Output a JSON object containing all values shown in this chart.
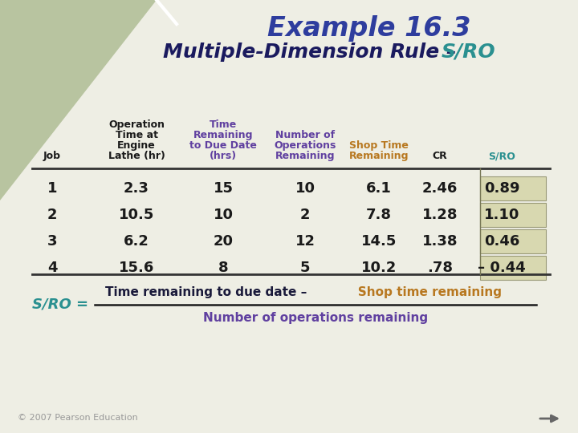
{
  "title1": "Example 16.3",
  "title2_black": "Multiple-Dimension Rule – ",
  "title2_teal": "S/RO",
  "bg_color": "#eeeee4",
  "header_triangle_color": "#b8c4a0",
  "rows": [
    [
      "1",
      "2.3",
      "15",
      "10",
      "6.1",
      "2.46",
      "0.89"
    ],
    [
      "2",
      "10.5",
      "10",
      "2",
      "7.8",
      "1.28",
      "1.10"
    ],
    [
      "3",
      "6.2",
      "20",
      "12",
      "14.5",
      "1.38",
      "0.46"
    ],
    [
      "4",
      "15.6",
      "8",
      "5",
      "10.2",
      ".78",
      "– 0.44"
    ]
  ],
  "footer": "© 2007 Pearson Education",
  "title1_color": "#2e3d9e",
  "title2_color": "#1a1a5e",
  "teal_color": "#2a9090",
  "purple_color": "#6040a0",
  "gold_color": "#b87820",
  "sro_highlight": "#d8d8b0"
}
